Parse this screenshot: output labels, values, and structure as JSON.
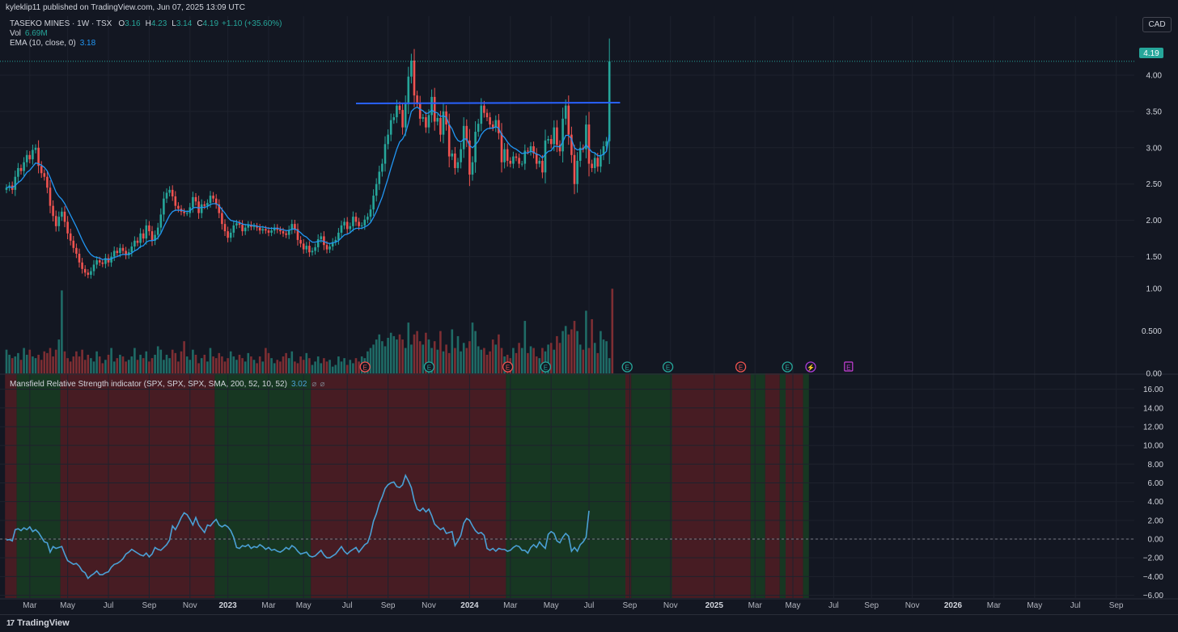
{
  "header": {
    "published": "kyleklip11 published on TradingView.com, Jun 07, 2025 13:09 UTC",
    "symbol": "TASEKO MINES · 1W · TSX",
    "ohlc": {
      "o_label": "O",
      "o": "3.16",
      "h_label": "H",
      "h": "4.23",
      "l_label": "L",
      "l": "3.14",
      "c_label": "C",
      "c": "4.19",
      "change": "+1.10 (+35.60%)"
    },
    "vol_label": "Vol",
    "vol": "6.69M",
    "ema_label": "EMA (10, close, 0)",
    "ema": "3.18",
    "currency": "CAD"
  },
  "indicator": {
    "label": "Mansfield Relative Strength indicator (SPX, SPX, SPX, SMA, 200, 52, 10, 52)",
    "value": "3.02",
    "icons": [
      "⌀",
      "⌀"
    ]
  },
  "footer": {
    "brand": "TradingView",
    "mark": "17"
  },
  "colors": {
    "up": "#26a69a",
    "down": "#ef5350",
    "ema": "#2196f3",
    "rs": "#4aa0d5",
    "resistance": "#2962ff",
    "green_band": "#173722",
    "red_band": "#471c23",
    "bg": "#131722",
    "grid": "#1e222d"
  },
  "chart_data": [
    {
      "type": "candlestick",
      "title": "TASEKO MINES · 1W · TSX",
      "ylim": [
        1.05,
        4.3
      ],
      "y_ticks": [
        "4.00",
        "3.50",
        "3.00",
        "2.50",
        "2.00",
        "1.50"
      ],
      "last_price": "4.19",
      "resistance_level": 3.61,
      "resistance_from_week": 120,
      "resistance_to_week": 194,
      "closes": [
        2.45,
        2.48,
        2.42,
        2.6,
        2.72,
        2.68,
        2.8,
        2.9,
        2.84,
        2.97,
        3,
        2.75,
        2.65,
        2.6,
        2.45,
        2.2,
        2.06,
        1.92,
        2.05,
        2.12,
        1.98,
        1.82,
        1.72,
        1.62,
        1.54,
        1.42,
        1.33,
        1.28,
        1.25,
        1.3,
        1.39,
        1.45,
        1.42,
        1.4,
        1.48,
        1.42,
        1.5,
        1.58,
        1.55,
        1.62,
        1.58,
        1.52,
        1.56,
        1.64,
        1.72,
        1.69,
        1.82,
        1.75,
        1.93,
        1.85,
        1.72,
        1.8,
        1.9,
        2.08,
        2.3,
        2.38,
        2.42,
        2.33,
        2.2,
        2.16,
        2.12,
        2.1,
        2.1,
        2.18,
        2.32,
        2.26,
        2.1,
        2.22,
        2.2,
        2.24,
        2.34,
        2.3,
        2.22,
        2.1,
        1.95,
        1.85,
        1.76,
        1.83,
        1.93,
        1.96,
        1.94,
        1.85,
        1.9,
        1.94,
        1.91,
        1.92,
        1.9,
        1.86,
        1.88,
        1.86,
        1.83,
        1.86,
        1.9,
        1.87,
        1.85,
        1.82,
        1.8,
        1.87,
        1.95,
        1.88,
        1.73,
        1.68,
        1.6,
        1.65,
        1.56,
        1.58,
        1.63,
        1.74,
        1.78,
        1.66,
        1.6,
        1.64,
        1.7,
        1.73,
        1.83,
        1.93,
        1.98,
        1.88,
        1.92,
        2.05,
        1.98,
        1.92,
        1.93,
        2.01,
        2.05,
        2.15,
        2.34,
        2.5,
        2.67,
        2.78,
        3.05,
        3.18,
        3.38,
        3.42,
        3.58,
        3.52,
        3.28,
        3.6,
        3.98,
        4.2,
        3.72,
        3.62,
        3.4,
        3.42,
        3.28,
        3.45,
        3.7,
        3.36,
        3.41,
        3.18,
        3.5,
        3.32,
        2.88,
        2.92,
        2.72,
        2.8,
        2.98,
        3.3,
        3.1,
        2.63,
        2.8,
        3.22,
        3.33,
        3.58,
        3.48,
        3.42,
        3.32,
        3.28,
        3.38,
        3.2,
        2.8,
        2.98,
        2.82,
        2.78,
        2.88,
        2.86,
        2.78,
        2.78,
        2.96,
        2.95,
        3.02,
        2.92,
        2.78,
        2.82,
        2.66,
        3.1,
        3.12,
        3.05,
        3.28,
        3.04,
        2.95,
        3.4,
        3.58,
        3.18,
        2.9,
        2.5,
        2.82,
        3.0,
        2.98,
        3.32,
        2.78,
        2.72,
        2.86,
        2.74,
        2.9,
        3.02,
        3.09,
        4.19
      ],
      "ema_10": [
        2.45,
        2.46,
        2.45,
        2.48,
        2.52,
        2.55,
        2.6,
        2.66,
        2.69,
        2.74,
        2.79,
        2.78,
        2.76,
        2.73,
        2.68,
        2.59,
        2.49,
        2.39,
        2.33,
        2.29,
        2.23,
        2.15,
        2.07,
        1.99,
        1.91,
        1.82,
        1.73,
        1.65,
        1.58,
        1.53,
        1.5,
        1.49,
        1.48,
        1.46,
        1.47,
        1.46,
        1.47,
        1.49,
        1.5,
        1.52,
        1.53,
        1.53,
        1.53,
        1.55,
        1.58,
        1.6,
        1.64,
        1.65,
        1.7,
        1.72,
        1.72,
        1.73,
        1.76,
        1.82,
        1.91,
        1.99,
        2.07,
        2.12,
        2.14,
        2.14,
        2.14,
        2.13,
        2.12,
        2.13,
        2.17,
        2.18,
        2.17,
        2.18,
        2.18,
        2.19,
        2.22,
        2.23,
        2.23,
        2.2,
        2.15,
        2.1,
        2.04,
        2.0,
        1.99,
        1.98,
        1.97,
        1.95,
        1.94,
        1.94,
        1.93,
        1.93,
        1.92,
        1.91,
        1.91,
        1.9,
        1.89,
        1.89,
        1.89,
        1.89,
        1.88,
        1.87,
        1.86,
        1.86,
        1.88,
        1.88,
        1.86,
        1.83,
        1.79,
        1.77,
        1.73,
        1.7,
        1.7,
        1.71,
        1.72,
        1.71,
        1.69,
        1.68,
        1.69,
        1.7,
        1.72,
        1.76,
        1.8,
        1.81,
        1.83,
        1.87,
        1.89,
        1.89,
        1.89,
        1.91,
        1.93,
        1.97,
        2.04,
        2.12,
        2.22,
        2.32,
        2.45,
        2.58,
        2.72,
        2.85,
        2.98,
        3.08,
        3.12,
        3.2,
        3.34,
        3.5,
        3.54,
        3.56,
        3.53,
        3.51,
        3.47,
        3.48,
        3.52,
        3.49,
        3.48,
        3.43,
        3.44,
        3.42,
        3.32,
        3.26,
        3.16,
        3.1,
        3.08,
        3.12,
        3.12,
        3.03,
        3.0,
        3.04,
        3.09,
        3.18,
        3.23,
        3.26,
        3.27,
        3.27,
        3.29,
        3.27,
        3.18,
        3.14,
        3.08,
        3.03,
        3.0,
        2.98,
        2.95,
        2.92,
        2.93,
        2.93,
        2.95,
        2.94,
        2.91,
        2.9,
        2.86,
        2.91,
        2.95,
        2.96,
        3.02,
        3.02,
        3.01,
        3.08,
        3.17,
        3.17,
        3.12,
        3.0,
        2.97,
        2.98,
        2.98,
        3.04,
        2.99,
        2.94,
        2.93,
        2.89,
        2.89,
        2.91,
        2.95,
        3.18
      ]
    },
    {
      "type": "bar",
      "title": "Vol",
      "ylim": [
        0,
        1.05
      ],
      "y_ticks": [
        "1.00",
        "0.500",
        "0.00"
      ],
      "values": [
        0.28,
        0.22,
        0.18,
        0.2,
        0.24,
        0.16,
        0.3,
        0.22,
        0.28,
        0.2,
        0.18,
        0.22,
        0.16,
        0.26,
        0.24,
        0.3,
        0.2,
        0.28,
        0.4,
        0.98,
        0.26,
        0.18,
        0.14,
        0.2,
        0.26,
        0.2,
        0.28,
        0.16,
        0.22,
        0.18,
        0.14,
        0.26,
        0.2,
        0.12,
        0.16,
        0.22,
        0.3,
        0.14,
        0.18,
        0.22,
        0.2,
        0.14,
        0.16,
        0.2,
        0.3,
        0.16,
        0.22,
        0.18,
        0.26,
        0.14,
        0.18,
        0.22,
        0.32,
        0.28,
        0.16,
        0.22,
        0.18,
        0.28,
        0.24,
        0.14,
        0.26,
        0.38,
        0.2,
        0.16,
        0.28,
        0.22,
        0.12,
        0.18,
        0.22,
        0.14,
        0.3,
        0.2,
        0.18,
        0.24,
        0.2,
        0.14,
        0.18,
        0.26,
        0.2,
        0.16,
        0.22,
        0.18,
        0.14,
        0.24,
        0.2,
        0.16,
        0.12,
        0.2,
        0.14,
        0.3,
        0.24,
        0.18,
        0.12,
        0.16,
        0.14,
        0.2,
        0.24,
        0.18,
        0.26,
        0.14,
        0.12,
        0.2,
        0.16,
        0.24,
        0.18,
        0.1,
        0.14,
        0.2,
        0.12,
        0.18,
        0.14,
        0.16,
        0.08,
        0.1,
        0.2,
        0.14,
        0.18,
        0.1,
        0.16,
        0.12,
        0.18,
        0.14,
        0.2,
        0.18,
        0.26,
        0.3,
        0.34,
        0.4,
        0.46,
        0.38,
        0.32,
        0.42,
        0.48,
        0.44,
        0.4,
        0.46,
        0.4,
        0.3,
        0.6,
        0.34,
        0.46,
        0.5,
        0.38,
        0.34,
        0.48,
        0.4,
        0.3,
        0.38,
        0.28,
        0.5,
        0.26,
        0.34,
        0.24,
        0.52,
        0.3,
        0.44,
        0.26,
        0.36,
        0.3,
        0.38,
        0.6,
        0.5,
        0.32,
        0.28,
        0.3,
        0.22,
        0.26,
        0.4,
        0.34,
        0.46,
        0.3,
        0.2,
        0.22,
        0.18,
        0.3,
        0.24,
        0.36,
        0.3,
        0.62,
        0.24,
        0.32,
        0.3,
        0.2,
        0.18,
        0.3,
        0.26,
        0.34,
        0.36,
        0.28,
        0.44,
        0.36,
        0.5,
        0.56,
        0.46,
        0.52,
        0.62,
        0.5,
        0.34,
        0.28,
        0.74,
        0.3,
        0.64,
        0.36,
        0.24,
        0.5,
        0.4,
        0.38,
        0.18,
        1.0
      ]
    },
    {
      "type": "line",
      "title": "Mansfield Relative Strength indicator (SPX, SPX, SPX, SMA, 200, 52, 10, 52)",
      "ylim": [
        -6.3,
        17.0
      ],
      "y_ticks": [
        "16.00",
        "14.00",
        "12.00",
        "10.00",
        "8.00",
        "6.00",
        "4.00",
        "2.00",
        "0.00",
        "−2.00",
        "−4.00",
        "−6.00"
      ],
      "zero_line": 0,
      "values": [
        -0.1,
        -0.05,
        -0.2,
        1.0,
        1.1,
        0.9,
        1.2,
        1.0,
        1.3,
        0.8,
        1.0,
        0.7,
        0.2,
        -0.3,
        -0.4,
        -1.4,
        -0.8,
        -1.0,
        -0.9,
        -0.8,
        -1.6,
        -2.3,
        -2.5,
        -2.7,
        -2.6,
        -2.9,
        -3.4,
        -3.6,
        -4.2,
        -3.9,
        -3.7,
        -3.4,
        -3.8,
        -3.8,
        -3.6,
        -3.5,
        -3.0,
        -2.7,
        -2.6,
        -2.4,
        -2.1,
        -1.6,
        -1.4,
        -1.1,
        -1.3,
        -1.5,
        -1.7,
        -1.8,
        -1.5,
        -1.9,
        -1.6,
        -0.9,
        -1.1,
        -1.2,
        -0.9,
        -0.6,
        -0.1,
        1.4,
        1.0,
        1.6,
        2.3,
        2.8,
        2.6,
        2.1,
        1.5,
        2.3,
        1.5,
        1.1,
        0.7,
        1.5,
        1.4,
        1.8,
        2.1,
        1.5,
        1.3,
        1.5,
        1.3,
        0.9,
        0.2,
        -0.9,
        -1.0,
        -0.7,
        -0.8,
        -0.6,
        -1.0,
        -0.8,
        -0.9,
        -0.6,
        -0.8,
        -1.1,
        -0.9,
        -1.2,
        -1.1,
        -1.3,
        -1.4,
        -1.2,
        -0.9,
        -1.1,
        -0.7,
        -0.9,
        -1.3,
        -1.6,
        -1.5,
        -1.4,
        -1.8,
        -1.9,
        -1.8,
        -1.5,
        -1.2,
        -1.7,
        -2.0,
        -2.0,
        -1.8,
        -1.6,
        -1.2,
        -0.8,
        -1.3,
        -1.6,
        -1.3,
        -1.1,
        -0.9,
        -1.4,
        -1.0,
        -0.6,
        -0.4,
        0.5,
        1.9,
        2.7,
        3.8,
        4.5,
        5.4,
        5.8,
        6.0,
        6.1,
        5.6,
        5.5,
        5.8,
        6.8,
        6.2,
        5.5,
        4.1,
        3.2,
        3.0,
        3.3,
        2.9,
        3.2,
        2.5,
        1.6,
        1.3,
        1.0,
        1.2,
        0.6,
        0.7,
        0.8,
        -0.7,
        -0.2,
        0.4,
        1.7,
        2.2,
        2.0,
        1.4,
        0.9,
        0.6,
        0.7,
        0.4,
        -1.0,
        -1.2,
        -1.0,
        -1.3,
        -1.0,
        -1.1,
        -1.1,
        -1.3,
        -1.2,
        -0.9,
        -0.7,
        -0.8,
        -1.2,
        -1.2,
        -1.5,
        -0.9,
        -0.6,
        -0.9,
        -0.3,
        -0.7,
        -1.0,
        0.5,
        0.8,
        0.6,
        -0.2,
        -0.4,
        0.2,
        0.6,
        0.3,
        -1.3,
        -0.9,
        -1.3,
        -0.6,
        -0.3,
        0.2,
        3.02
      ],
      "bands": [
        {
          "from": 0,
          "to": 4,
          "state": "red"
        },
        {
          "from": 4,
          "to": 19,
          "state": "green"
        },
        {
          "from": 19,
          "to": 72,
          "state": "red"
        },
        {
          "from": 72,
          "to": 105,
          "state": "green"
        },
        {
          "from": 105,
          "to": 172,
          "state": "red"
        },
        {
          "from": 172,
          "to": 213,
          "state": "green"
        },
        {
          "from": 213,
          "to": 215,
          "state": "red"
        },
        {
          "from": 215,
          "to": 229,
          "state": "green"
        },
        {
          "from": 229,
          "to": 256,
          "state": "red"
        },
        {
          "from": 256,
          "to": 261,
          "state": "green"
        },
        {
          "from": 261,
          "to": 266,
          "state": "red"
        },
        {
          "from": 266,
          "to": 268,
          "state": "green"
        },
        {
          "from": 268,
          "to": 274,
          "state": "red"
        },
        {
          "from": 274,
          "to": 276,
          "state": "green"
        }
      ]
    }
  ],
  "earnings_markers": [
    {
      "week": 122,
      "kind": "down"
    },
    {
      "week": 144,
      "kind": "up"
    },
    {
      "week": 171,
      "kind": "down"
    },
    {
      "week": 184,
      "kind": "up"
    },
    {
      "week": 212,
      "kind": "up"
    },
    {
      "week": 226,
      "kind": "up"
    },
    {
      "week": 251,
      "kind": "down"
    },
    {
      "week": 267,
      "kind": "up"
    }
  ],
  "event_markers": [
    {
      "week": 275,
      "glyph": "⚡"
    },
    {
      "week": 288,
      "glyph": "E"
    }
  ],
  "x_axis": {
    "ticks": [
      {
        "label": "Mar",
        "week": 8
      },
      {
        "label": "May",
        "week": 21
      },
      {
        "label": "Jul",
        "week": 35
      },
      {
        "label": "Sep",
        "week": 49
      },
      {
        "label": "Nov",
        "week": 63
      },
      {
        "label": "2023",
        "week": 76,
        "bold": true
      },
      {
        "label": "Mar",
        "week": 90
      },
      {
        "label": "May",
        "week": 102
      },
      {
        "label": "Jul",
        "week": 117
      },
      {
        "label": "Sep",
        "week": 131
      },
      {
        "label": "Nov",
        "week": 145
      },
      {
        "label": "2024",
        "week": 159,
        "bold": true
      },
      {
        "label": "Mar",
        "week": 173
      },
      {
        "label": "May",
        "week": 187
      },
      {
        "label": "Jul",
        "week": 200
      },
      {
        "label": "Sep",
        "week": 214
      },
      {
        "label": "Nov",
        "week": 228
      },
      {
        "label": "2025",
        "week": 243,
        "bold": true
      },
      {
        "label": "Mar",
        "week": 257
      },
      {
        "label": "May",
        "week": 270
      },
      {
        "label": "Jul",
        "week": 284
      },
      {
        "label": "Sep",
        "week": 297
      },
      {
        "label": "Nov",
        "week": 311
      },
      {
        "label": "2026",
        "week": 325,
        "bold": true
      },
      {
        "label": "Mar",
        "week": 339
      },
      {
        "label": "May",
        "week": 353
      },
      {
        "label": "Jul",
        "week": 367
      },
      {
        "label": "Sep",
        "week": 381
      }
    ]
  }
}
